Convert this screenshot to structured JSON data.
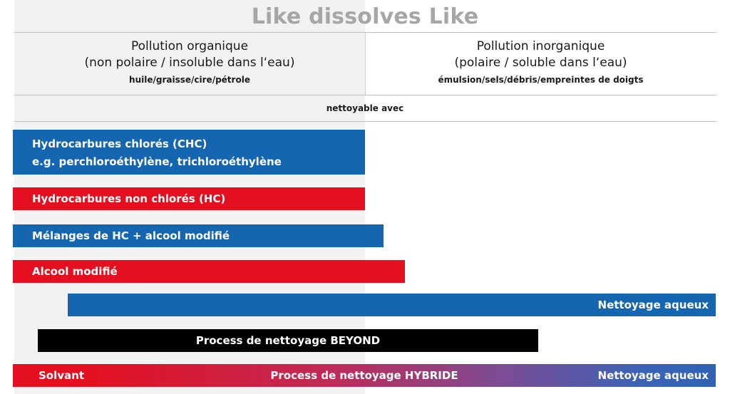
{
  "title": "Like dissolves Like",
  "columns": {
    "left": {
      "heading_line1": "Pollution organique",
      "heading_line2": "(non polaire / insoluble dans l‘eau)",
      "examples": "huile/graisse/cire/pétrole"
    },
    "right": {
      "heading_line1": "Pollution inorganique",
      "heading_line2": "(polaire / soluble dans l‘eau)",
      "examples": "émulsion/sels/débris/empreintes de doigts"
    }
  },
  "cleanable_with": "nettoyable avec",
  "bars": {
    "chc": {
      "line1": "Hydrocarbures chlorés (CHC)",
      "line2": "e.g. perchloroéthylène, trichloroéthylène",
      "color": "#1566b0"
    },
    "hc": {
      "label": "Hydrocarbures non chlorés (HC)",
      "color": "#e4101f"
    },
    "hc_mix": {
      "label": "Mélanges de HC + alcool modifié",
      "color": "#1566b0"
    },
    "modified_alcohol": {
      "label": "Alcool modifié",
      "color": "#e4101f"
    },
    "aqueous": {
      "label": "Nettoyage aqueux",
      "color": "#1566b0"
    },
    "beyond": {
      "label": "Process de nettoyage BEYOND",
      "color": "#000000"
    },
    "hybrid": {
      "left_label": "Solvant",
      "center_label": "Process de nettoyage HYBRIDE",
      "right_label": "Nettoyage aqueux"
    }
  }
}
